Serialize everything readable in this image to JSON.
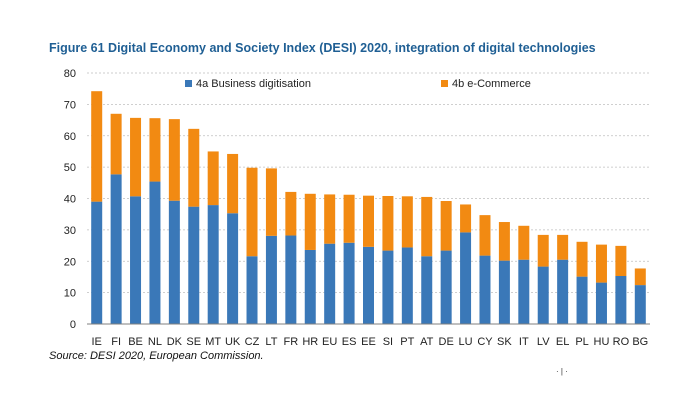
{
  "figure": {
    "title": "Figure 61 Digital Economy and Society Index (DESI) 2020, integration of digital technologies",
    "source": "Source: DESI 2020, European Commission.",
    "footer_mark": "· | ·"
  },
  "colors": {
    "title": "#1f5f94",
    "business": "#3a78b8",
    "ecommerce": "#f28a12",
    "grid": "#bfbfbf",
    "axis": "#7f7f7f"
  },
  "chart_data": {
    "type": "bar",
    "stacked": true,
    "title": "Figure 61 Digital Economy and Society Index (DESI) 2020, integration of digital technologies",
    "xlabel": "",
    "ylabel": "",
    "ylim": [
      0,
      80
    ],
    "yticks": [
      0,
      10,
      20,
      30,
      40,
      50,
      60,
      70,
      80
    ],
    "grid": "horizontal dashed",
    "legend_placement": "top",
    "categories": [
      "IE",
      "FI",
      "BE",
      "NL",
      "DK",
      "SE",
      "MT",
      "UK",
      "CZ",
      "LT",
      "FR",
      "HR",
      "EU",
      "ES",
      "EE",
      "SI",
      "PT",
      "AT",
      "DE",
      "LU",
      "CY",
      "SK",
      "IT",
      "LV",
      "EL",
      "PL",
      "HU",
      "RO",
      "BG"
    ],
    "series": [
      {
        "name": "4a Business digitisation",
        "color": "#3a78b8",
        "values": [
          39.0,
          47.7,
          40.7,
          45.4,
          39.3,
          37.4,
          37.9,
          35.3,
          21.6,
          28.1,
          28.2,
          23.6,
          25.6,
          25.9,
          24.6,
          23.4,
          24.4,
          21.6,
          23.4,
          29.2,
          21.8,
          20.2,
          20.5,
          18.3,
          20.5,
          15.1,
          13.2,
          15.3,
          12.4
        ]
      },
      {
        "name": "4b e-Commerce",
        "color": "#f28a12",
        "values": [
          35.2,
          19.3,
          25.0,
          20.2,
          26.0,
          24.8,
          17.1,
          18.9,
          28.2,
          21.5,
          13.9,
          17.9,
          15.7,
          15.3,
          16.3,
          17.4,
          16.3,
          18.9,
          15.8,
          8.9,
          12.9,
          12.3,
          10.8,
          10.1,
          7.9,
          11.1,
          12.1,
          9.6,
          5.3
        ]
      }
    ]
  }
}
